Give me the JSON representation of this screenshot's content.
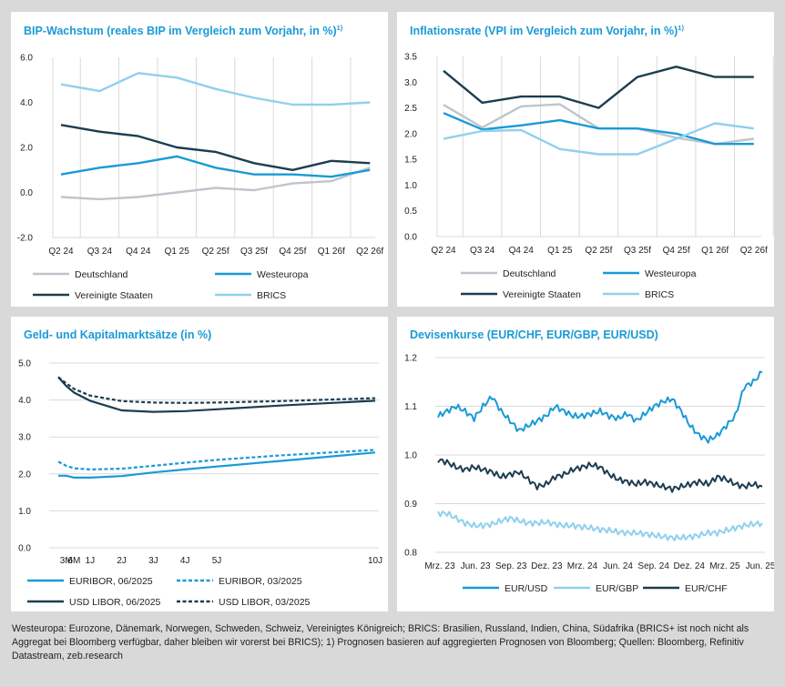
{
  "colors": {
    "title": "#1a9ad6",
    "germany": "#bfc5cc",
    "westeuropa": "#1a9ad6",
    "usa": "#1c3d50",
    "brics": "#8fd0ee",
    "grid": "#d9d9d9"
  },
  "chart_data": [
    {
      "id": "gdp",
      "type": "line",
      "title": "BIP-Wachstum (reales BIP im Vergleich zum Vorjahr, in %)",
      "footnote_ref": "1)",
      "ylim": [
        -2,
        6
      ],
      "yticks": [
        "6.0",
        "4.0",
        "2.0",
        "0.0",
        "-2.0"
      ],
      "ytick_values": [
        6,
        4,
        2,
        0,
        -2
      ],
      "categories": [
        "Q2 24",
        "Q3 24",
        "Q4 24",
        "Q1 25",
        "Q2 25f",
        "Q3 25f",
        "Q4 25f",
        "Q1 26f",
        "Q2 26f"
      ],
      "series": [
        {
          "name": "Deutschland",
          "color": "#bfc5cc",
          "values": [
            -0.2,
            -0.3,
            -0.2,
            0.0,
            0.2,
            0.1,
            0.4,
            0.5,
            1.1
          ]
        },
        {
          "name": "Westeuropa",
          "color": "#1a9ad6",
          "values": [
            0.8,
            1.1,
            1.3,
            1.6,
            1.1,
            0.8,
            0.8,
            0.7,
            1.0
          ]
        },
        {
          "name": "Vereinigte Staaten",
          "color": "#1c3d50",
          "values": [
            3.0,
            2.7,
            2.5,
            2.0,
            1.8,
            1.3,
            1.0,
            1.4,
            1.3
          ]
        },
        {
          "name": "BRICS",
          "color": "#8fd0ee",
          "values": [
            4.8,
            4.5,
            5.3,
            5.1,
            4.6,
            4.2,
            3.9,
            3.9,
            4.0
          ]
        }
      ]
    },
    {
      "id": "cpi",
      "type": "line",
      "title": "Inflationsrate (VPI im Vergleich zum Vorjahr, in %)",
      "footnote_ref": "1)",
      "ylim": [
        0,
        3.5
      ],
      "yticks": [
        "3.5",
        "3.0",
        "2.5",
        "2.0",
        "1.5",
        "1.0",
        "0.5",
        "0.0"
      ],
      "ytick_values": [
        3.5,
        3.0,
        2.5,
        2.0,
        1.5,
        1.0,
        0.5,
        0.0
      ],
      "categories": [
        "Q2 24",
        "Q3 24",
        "Q4 24",
        "Q1 25",
        "Q2 25f",
        "Q3 25f",
        "Q4 25f",
        "Q1 26f",
        "Q2 26f"
      ],
      "series": [
        {
          "name": "Deutschland",
          "color": "#bfc5cc",
          "values": [
            2.56,
            2.12,
            2.53,
            2.57,
            2.1,
            2.1,
            1.92,
            1.8,
            1.9
          ]
        },
        {
          "name": "Westeuropa",
          "color": "#1a9ad6",
          "values": [
            2.4,
            2.08,
            2.16,
            2.26,
            2.1,
            2.1,
            2.0,
            1.8,
            1.8
          ]
        },
        {
          "name": "Vereinigte Staaten",
          "color": "#1c3d50",
          "values": [
            3.22,
            2.6,
            2.72,
            2.72,
            2.5,
            3.1,
            3.3,
            3.1,
            3.1
          ]
        },
        {
          "name": "BRICS",
          "color": "#8fd0ee",
          "values": [
            1.9,
            2.05,
            2.07,
            1.7,
            1.6,
            1.6,
            1.9,
            2.2,
            2.1
          ]
        }
      ]
    },
    {
      "id": "rates",
      "type": "line",
      "title": "Geld- und Kapitalmarktsätze (in %)",
      "ylim": [
        0,
        5
      ],
      "yticks": [
        "5.0",
        "4.0",
        "3.0",
        "2.0",
        "1.0",
        "0.0"
      ],
      "ytick_values": [
        5,
        4,
        3,
        2,
        1,
        0
      ],
      "xlim": [
        0,
        10
      ],
      "x_tick_labels": [
        "3M",
        "6M",
        "1J",
        "2J",
        "3J",
        "4J",
        "5J",
        "10J"
      ],
      "x_tick_values": [
        0.25,
        0.5,
        1,
        2,
        3,
        4,
        5,
        10
      ],
      "series": [
        {
          "name": "EURIBOR, 06/2025",
          "color": "#1a9ad6",
          "dash": false,
          "x": [
            0,
            0.25,
            0.5,
            1,
            2,
            3,
            4,
            5,
            7,
            10
          ],
          "values": [
            1.95,
            1.95,
            1.9,
            1.9,
            1.94,
            2.04,
            2.12,
            2.2,
            2.35,
            2.58
          ]
        },
        {
          "name": "EURIBOR, 03/2025",
          "color": "#1a9ad6",
          "dash": true,
          "x": [
            0,
            0.25,
            0.5,
            1,
            2,
            3,
            4,
            5,
            7,
            10
          ],
          "values": [
            2.33,
            2.22,
            2.15,
            2.12,
            2.14,
            2.22,
            2.3,
            2.38,
            2.5,
            2.65
          ]
        },
        {
          "name": "USD LIBOR, 06/2025",
          "color": "#1c3d50",
          "dash": false,
          "x": [
            0,
            0.25,
            0.5,
            1,
            2,
            3,
            4,
            5,
            7,
            10
          ],
          "values": [
            4.62,
            4.38,
            4.2,
            3.98,
            3.72,
            3.68,
            3.7,
            3.75,
            3.85,
            3.98
          ]
        },
        {
          "name": "USD LIBOR, 03/2025",
          "color": "#1c3d50",
          "dash": true,
          "x": [
            0,
            0.25,
            0.5,
            1,
            2,
            3,
            4,
            5,
            7,
            10
          ],
          "values": [
            4.62,
            4.45,
            4.3,
            4.12,
            3.97,
            3.93,
            3.92,
            3.93,
            3.97,
            4.05
          ]
        }
      ]
    },
    {
      "id": "fx",
      "type": "line",
      "title": "Devisenkurse (EUR/CHF, EUR/GBP, EUR/USD)",
      "ylim": [
        0.8,
        1.2
      ],
      "yticks": [
        "1.2",
        "1.1",
        "1.0",
        "0.9",
        "0.8"
      ],
      "ytick_values": [
        1.2,
        1.1,
        1.0,
        0.9,
        0.8
      ],
      "x_tick_labels": [
        "Mrz. 23",
        "Jun. 23",
        "Sep. 23",
        "Dez. 23",
        "Mrz. 24",
        "Jun. 24",
        "Sep. 24",
        "Dez. 24",
        "Mrz. 25",
        "Jun. 25"
      ],
      "series": [
        {
          "name": "EUR/USD",
          "color": "#1a9ad6",
          "values": [
            1.08,
            1.09,
            1.1,
            1.09,
            1.075,
            1.1,
            1.12,
            1.09,
            1.07,
            1.05,
            1.06,
            1.07,
            1.08,
            1.1,
            1.09,
            1.08,
            1.08,
            1.085,
            1.09,
            1.08,
            1.075,
            1.085,
            1.07,
            1.085,
            1.1,
            1.11,
            1.115,
            1.09,
            1.06,
            1.04,
            1.03,
            1.04,
            1.06,
            1.08,
            1.14,
            1.15,
            1.17
          ]
        },
        {
          "name": "EUR/GBP",
          "color": "#8fd0ee",
          "values": [
            0.88,
            0.88,
            0.87,
            0.86,
            0.855,
            0.855,
            0.858,
            0.865,
            0.87,
            0.865,
            0.86,
            0.86,
            0.862,
            0.858,
            0.855,
            0.855,
            0.852,
            0.85,
            0.847,
            0.845,
            0.842,
            0.84,
            0.84,
            0.838,
            0.835,
            0.832,
            0.83,
            0.83,
            0.832,
            0.835,
            0.84,
            0.84,
            0.845,
            0.85,
            0.855,
            0.858,
            0.86
          ]
        },
        {
          "name": "EUR/CHF",
          "color": "#1c3d50",
          "values": [
            0.99,
            0.985,
            0.975,
            0.97,
            0.975,
            0.97,
            0.965,
            0.955,
            0.96,
            0.965,
            0.95,
            0.935,
            0.94,
            0.955,
            0.96,
            0.97,
            0.975,
            0.98,
            0.975,
            0.96,
            0.95,
            0.945,
            0.94,
            0.945,
            0.94,
            0.935,
            0.93,
            0.935,
            0.94,
            0.945,
            0.94,
            0.955,
            0.95,
            0.94,
            0.935,
            0.94,
            0.935
          ]
        }
      ]
    }
  ],
  "footnote": "Westeuropa: Eurozone, Dänemark, Norwegen, Schweden, Schweiz, Vereinigtes Königreich; BRICS: Brasilien, Russland, Indien, China, Südafrika (BRICS+ ist noch nicht als Aggregat bei Bloomberg verfügbar, daher bleiben wir vorerst bei BRICS); 1) Prognosen basieren auf aggregierten Prognosen von Bloomberg; Quellen: Bloomberg, Refinitiv Datastream, zeb.research"
}
